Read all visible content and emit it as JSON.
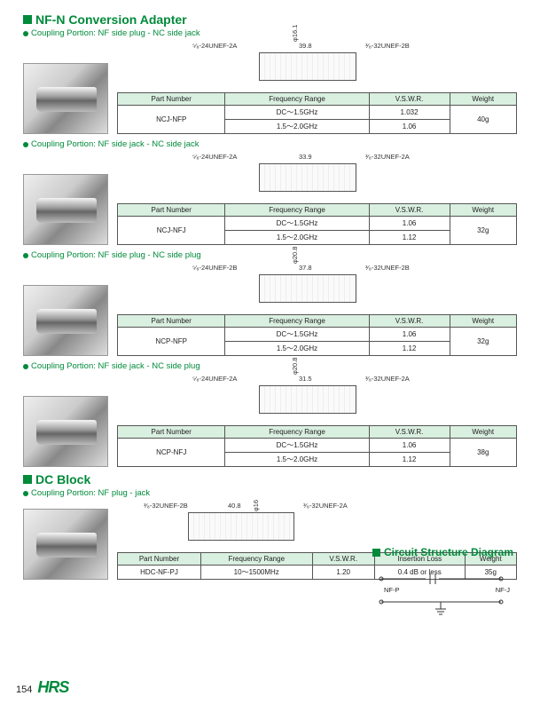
{
  "title_main": "NF-N Conversion Adapter",
  "title_dc": "DC Block",
  "circuit_title": "Circuit Structure Diagram",
  "page_no": "154",
  "logo": "HRS",
  "thread_labels": {
    "left_2A": "⁵⁄₈-24UNEF-2A",
    "left_2B": "⁵⁄₈-24UNEF-2B",
    "right_2A": "³⁄₈-32UNEF-2A",
    "right_2B": "³⁄₈-32UNEF-2B"
  },
  "circuit": {
    "nfp": "NF-P",
    "nfj": "NF-J"
  },
  "sections": [
    {
      "coupling": "Coupling Portion: NF side plug - NC side jack",
      "diagram": {
        "length": "39.8",
        "diam": "φ16.1",
        "left_thread": "left_2A",
        "right_thread": "right_2B"
      },
      "cols": [
        "Part Number",
        "Frequency Range",
        "V.S.W.R.",
        "Weight"
      ],
      "part": "NCJ-NFP",
      "freq": [
        "DC～1.5GHz",
        "1.5～2.0GHz"
      ],
      "vswr": [
        "1.032",
        "1.06"
      ],
      "weight": "40g"
    },
    {
      "coupling": "Coupling Portion: NF side jack - NC side jack",
      "diagram": {
        "length": "33.9",
        "diam": "",
        "left_thread": "left_2A",
        "right_thread": "right_2A"
      },
      "cols": [
        "Part Number",
        "Frequency Range",
        "V.S.W.R.",
        "Weight"
      ],
      "part": "NCJ-NFJ",
      "freq": [
        "DC～1.5GHz",
        "1.5～2.0GHz"
      ],
      "vswr": [
        "1.06",
        "1.12"
      ],
      "weight": "32g"
    },
    {
      "coupling": "Coupling Portion: NF side plug - NC side plug",
      "diagram": {
        "length": "37.8",
        "diam": "φ20.8",
        "left_thread": "left_2B",
        "right_thread": "right_2B"
      },
      "cols": [
        "Part Number",
        "Frequency Range",
        "V.S.W.R.",
        "Weight"
      ],
      "part": "NCP-NFP",
      "freq": [
        "DC～1.5GHz",
        "1.5～2.0GHz"
      ],
      "vswr": [
        "1.06",
        "1.12"
      ],
      "weight": "32g"
    },
    {
      "coupling": "Coupling Portion: NF side jack - NC side plug",
      "diagram": {
        "length": "31.5",
        "diam": "φ20.8",
        "left_thread": "left_2A",
        "right_thread": "right_2A"
      },
      "cols": [
        "Part Number",
        "Frequency Range",
        "V.S.W.R.",
        "Weight"
      ],
      "part": "NCP-NFJ",
      "freq": [
        "DC～1.5GHz",
        "1.5～2.0GHz"
      ],
      "vswr": [
        "1.06",
        "1.12"
      ],
      "weight": "38g"
    }
  ],
  "dc_section": {
    "coupling": "Coupling Portion: NF plug - jack",
    "diagram": {
      "length": "40.8",
      "diam": "φ16",
      "left_thread": "right_2B",
      "right_thread": "right_2A"
    },
    "cols": [
      "Part Number",
      "Frequency Range",
      "V.S.W.R.",
      "Insertion Loss",
      "Weight"
    ],
    "row": [
      "HDC-NF-PJ",
      "10～1500MHz",
      "1.20",
      "0.4 dB or less",
      "35g"
    ]
  }
}
